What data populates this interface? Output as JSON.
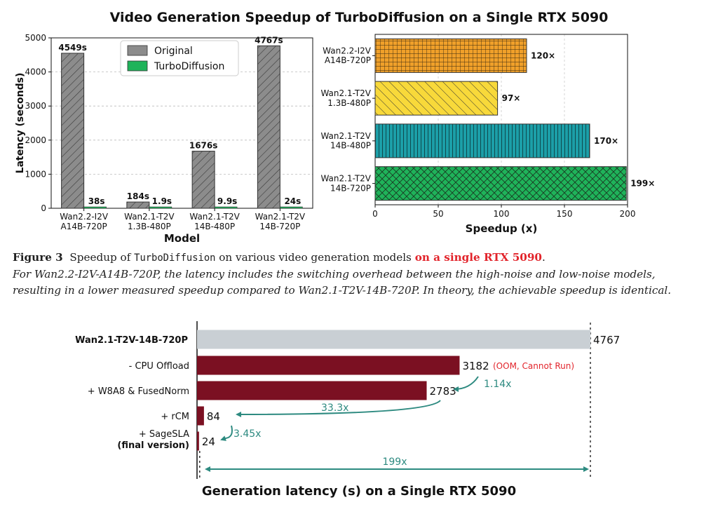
{
  "title": "Video Generation Speedup of TurboDiffusion on a Single RTX 5090",
  "colors": {
    "original": "#8c8c8c",
    "turbo": "#1fb35a",
    "bar_dark": "#7b1022",
    "bar_gray": "#c9cfd4",
    "teal": "#2d8a80",
    "red": "#e2242b"
  },
  "chart_data": [
    {
      "type": "bar",
      "title": "",
      "xlabel": "Model",
      "ylabel": "Latency (seconds)",
      "ylim": [
        0,
        5000
      ],
      "yticks": [
        "0",
        "1000",
        "2000",
        "3000",
        "4000",
        "5000"
      ],
      "categories": [
        "Wan2.2-I2V\nA14B-720P",
        "Wan2.1-T2V\n1.3B-480P",
        "Wan2.1-T2V\n14B-480P",
        "Wan2.1-T2V\n14B-720P"
      ],
      "series": [
        {
          "name": "Original",
          "values": [
            4549,
            184,
            1676,
            4767
          ],
          "labels": [
            "4549s",
            "184s",
            "1676s",
            "4767s"
          ]
        },
        {
          "name": "TurboDiffusion",
          "values": [
            38,
            1.9,
            9.9,
            24
          ],
          "labels": [
            "38s",
            "1.9s",
            "9.9s",
            "24s"
          ]
        }
      ],
      "legend": "top-center"
    },
    {
      "type": "bar",
      "orientation": "horizontal",
      "xlabel": "Speedup (x)",
      "xlim": [
        0,
        200
      ],
      "xticks": [
        "0",
        "50",
        "100",
        "150",
        "200"
      ],
      "categories": [
        "Wan2.2-I2V\nA14B-720P",
        "Wan2.1-T2V\n1.3B-480P",
        "Wan2.1-T2V\n14B-480P",
        "Wan2.1-T2V\n14B-720P"
      ],
      "values": [
        120,
        97,
        170,
        199
      ],
      "labels": [
        "120×",
        "97×",
        "170×",
        "199×"
      ],
      "colors": [
        "#f0a02a",
        "#f8d93a",
        "#1c9fa8",
        "#1fb35a"
      ],
      "hatches": [
        "grid",
        "diagonal",
        "vertical",
        "crosshatch"
      ]
    },
    {
      "type": "bar",
      "orientation": "horizontal",
      "title": "Generation latency (s) on a Single RTX 5090",
      "categories": [
        "Wan2.1-T2V-14B-720P",
        "- CPU Offload",
        "+ W8A8 & FusedNorm",
        "+ rCM",
        "+ SageSLA",
        "(final version)"
      ],
      "values": [
        4767,
        3182,
        2783,
        84,
        24
      ],
      "labels": [
        "4767",
        "3182",
        "2783",
        "84",
        "24"
      ],
      "annotations": [
        "(OOM, Cannot Run)",
        "1.14x",
        "33.3x",
        "3.45x",
        "199x"
      ]
    }
  ],
  "caption": {
    "fig_label": "Figure 3",
    "text_a": "Speedup of ",
    "mono": "TurboDiffusion",
    "text_b": " on various video generation models ",
    "red": "on a single RTX 5090",
    "text_c": ".",
    "italic": "For Wan2.2-I2V-A14B-720P, the latency includes the switching overhead between the high-noise and low-noise models, resulting in a lower measured speedup compared to Wan2.1-T2V-14B-720P. In theory, the achievable speedup is identical."
  }
}
